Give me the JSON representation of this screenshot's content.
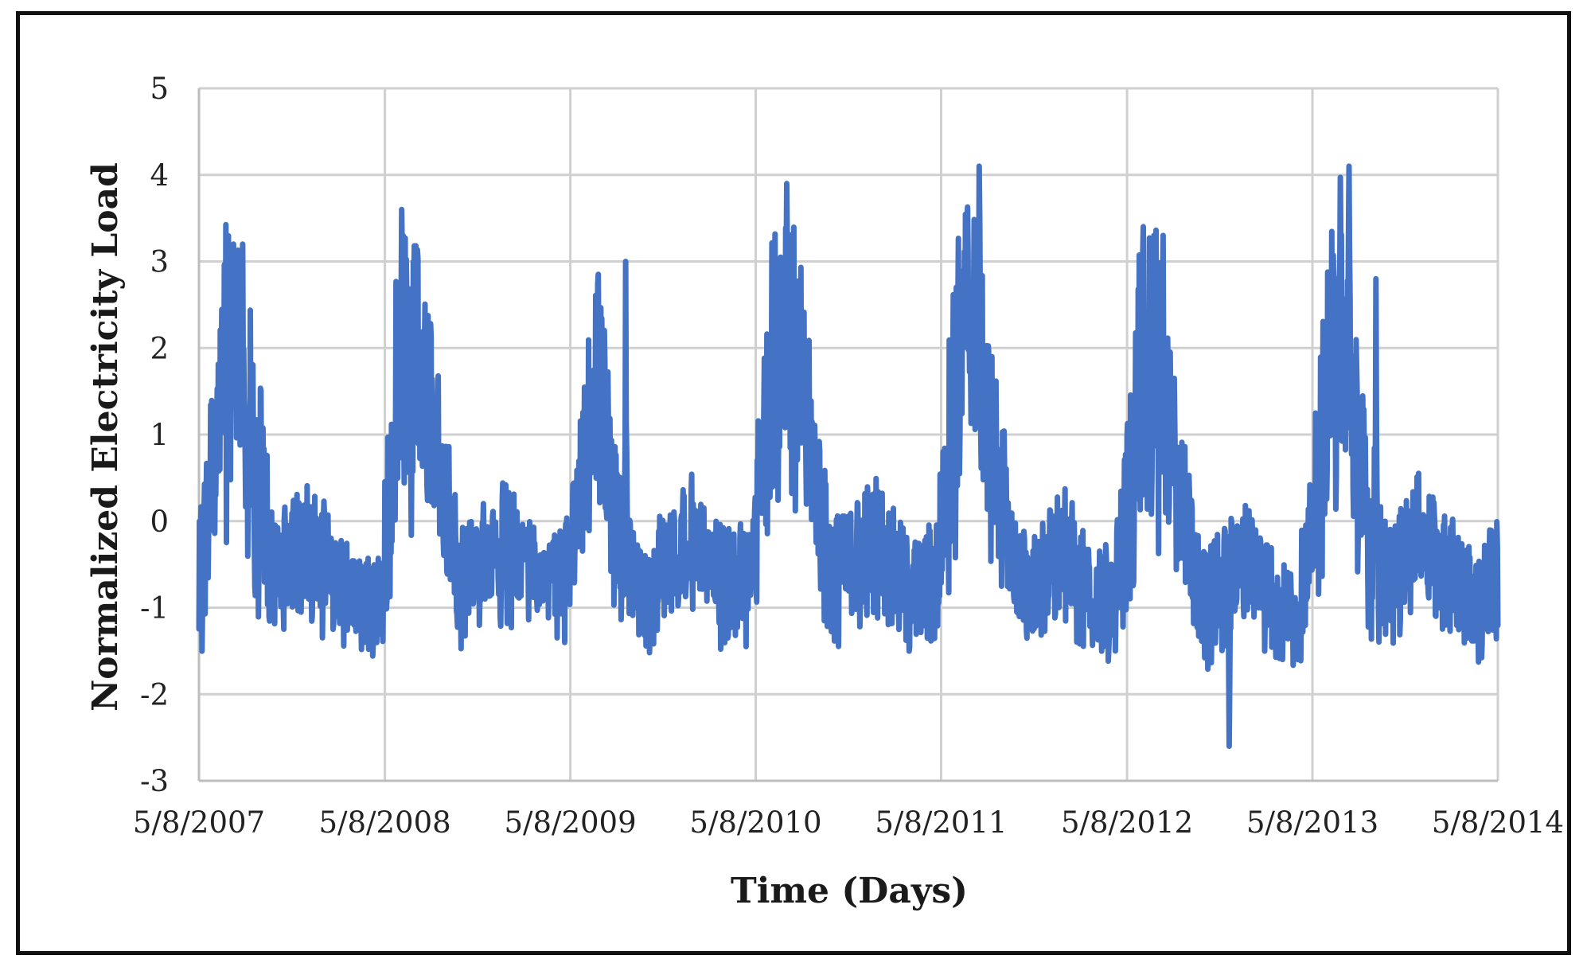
{
  "chart_data": {
    "type": "line",
    "title": "",
    "xlabel": "Time (Days)",
    "ylabel": "Normalized Electricity Load",
    "x_ticks": [
      "5/8/2007",
      "5/8/2008",
      "5/8/2009",
      "5/8/2010",
      "5/8/2011",
      "5/8/2012",
      "5/8/2013",
      "5/8/2014"
    ],
    "y_ticks": [
      "5",
      "4",
      "3",
      "2",
      "1",
      "0",
      "-1",
      "-2",
      "-3"
    ],
    "xlim": [
      "5/8/2007",
      "5/8/2014"
    ],
    "ylim": [
      -3,
      5
    ],
    "grid": true,
    "legend": "none",
    "series": [
      {
        "color": "#4472C4",
        "frequency": "daily",
        "x": [
          "2007-05-08",
          "2007-06-01",
          "2007-07-01",
          "2007-08-01",
          "2007-09-01",
          "2007-10-01",
          "2007-11-01",
          "2007-12-01",
          "2008-01-01",
          "2008-02-01",
          "2008-03-01",
          "2008-04-01",
          "2008-05-01",
          "2008-06-01",
          "2008-07-01",
          "2008-08-01",
          "2008-09-01",
          "2008-10-01",
          "2008-11-01",
          "2008-12-01",
          "2009-01-01",
          "2009-02-01",
          "2009-03-01",
          "2009-04-01",
          "2009-05-01",
          "2009-06-01",
          "2009-07-01",
          "2009-08-01",
          "2009-09-01",
          "2009-10-01",
          "2009-11-01",
          "2009-12-01",
          "2010-01-01",
          "2010-02-01",
          "2010-03-01",
          "2010-04-01",
          "2010-05-01",
          "2010-06-01",
          "2010-07-01",
          "2010-08-01",
          "2010-09-01",
          "2010-10-01",
          "2010-11-01",
          "2010-12-01",
          "2011-01-01",
          "2011-02-01",
          "2011-03-01",
          "2011-04-01",
          "2011-05-01",
          "2011-06-01",
          "2011-07-01",
          "2011-08-01",
          "2011-09-01",
          "2011-10-01",
          "2011-11-01",
          "2011-12-01",
          "2012-01-01",
          "2012-02-01",
          "2012-03-01",
          "2012-04-01",
          "2012-05-01",
          "2012-06-01",
          "2012-07-01",
          "2012-08-01",
          "2012-09-01",
          "2012-10-01",
          "2012-11-01",
          "2012-12-01",
          "2013-01-01",
          "2013-02-01",
          "2013-03-01",
          "2013-04-01",
          "2013-05-01",
          "2013-06-01",
          "2013-07-01",
          "2013-08-01",
          "2013-09-01",
          "2013-10-01",
          "2013-11-01",
          "2013-12-01",
          "2014-01-01",
          "2014-02-01",
          "2014-03-01",
          "2014-04-01",
          "2014-05-08"
        ],
        "values": [
          -0.7,
          0.4,
          1.9,
          1.5,
          0.5,
          -0.6,
          -0.5,
          -0.3,
          -0.4,
          -0.6,
          -0.9,
          -1.0,
          -0.9,
          1.4,
          1.9,
          1.2,
          0.3,
          -0.7,
          -0.5,
          -0.3,
          -0.3,
          -0.4,
          -0.6,
          -0.7,
          -0.6,
          0.4,
          1.8,
          0.1,
          -0.6,
          -0.9,
          -0.6,
          -0.3,
          -0.2,
          -0.4,
          -0.7,
          -0.8,
          -0.5,
          1.4,
          2.4,
          1.6,
          0.5,
          -0.6,
          -0.6,
          -0.4,
          -0.2,
          -0.5,
          -0.8,
          -0.8,
          -0.6,
          1.3,
          2.5,
          1.3,
          0.4,
          -0.6,
          -0.8,
          -0.6,
          -0.3,
          -0.6,
          -1.0,
          -0.9,
          -0.3,
          1.6,
          1.7,
          0.9,
          -0.1,
          -1.0,
          -0.8,
          -0.6,
          -0.4,
          -0.7,
          -1.0,
          -1.1,
          -0.5,
          1.2,
          2.4,
          1.0,
          -0.3,
          -0.7,
          -0.5,
          -0.1,
          -0.4,
          -0.6,
          -0.8,
          -1.0,
          -0.6
        ],
        "daily_range": [
          0.9,
          0.9,
          1.6,
          1.5,
          1.3,
          0.7,
          0.6,
          0.7,
          0.7,
          0.6,
          0.5,
          0.5,
          0.7,
          1.4,
          1.6,
          1.2,
          0.9,
          0.6,
          0.6,
          0.7,
          0.7,
          0.6,
          0.5,
          0.5,
          0.6,
          0.9,
          1.2,
          0.8,
          0.6,
          0.5,
          0.6,
          0.6,
          0.7,
          0.6,
          0.6,
          0.6,
          0.7,
          1.5,
          1.5,
          1.4,
          0.9,
          0.7,
          0.6,
          0.7,
          0.7,
          0.6,
          0.6,
          0.6,
          0.7,
          1.5,
          1.5,
          1.2,
          0.9,
          0.6,
          0.6,
          0.6,
          0.7,
          0.6,
          0.5,
          0.6,
          0.8,
          1.6,
          1.6,
          1.2,
          0.8,
          0.6,
          0.6,
          0.6,
          0.6,
          0.6,
          0.5,
          0.5,
          0.7,
          1.3,
          1.6,
          1.2,
          0.8,
          0.6,
          0.6,
          0.6,
          0.6,
          0.6,
          0.6,
          0.5,
          0.7
        ],
        "peaks": [
          {
            "x": "2007-07-15",
            "y": 3.2
          },
          {
            "x": "2007-08-02",
            "y": 3.2
          },
          {
            "x": "2008-06-10",
            "y": 3.6
          },
          {
            "x": "2008-07-10",
            "y": 3.1
          },
          {
            "x": "2009-08-25",
            "y": 3.0
          },
          {
            "x": "2010-07-08",
            "y": 3.9
          },
          {
            "x": "2011-07-22",
            "y": 4.1
          },
          {
            "x": "2012-06-30",
            "y": 3.3
          },
          {
            "x": "2012-07-18",
            "y": 3.3
          },
          {
            "x": "2013-07-19",
            "y": 4.1
          },
          {
            "x": "2013-09-10",
            "y": 2.8
          }
        ],
        "troughs": [
          {
            "x": "2012-11-25",
            "y": -2.6
          },
          {
            "x": "2013-04-10",
            "y": -1.6
          },
          {
            "x": "2008-04-20",
            "y": -1.4
          },
          {
            "x": "2012-04-15",
            "y": -1.5
          }
        ]
      }
    ]
  }
}
